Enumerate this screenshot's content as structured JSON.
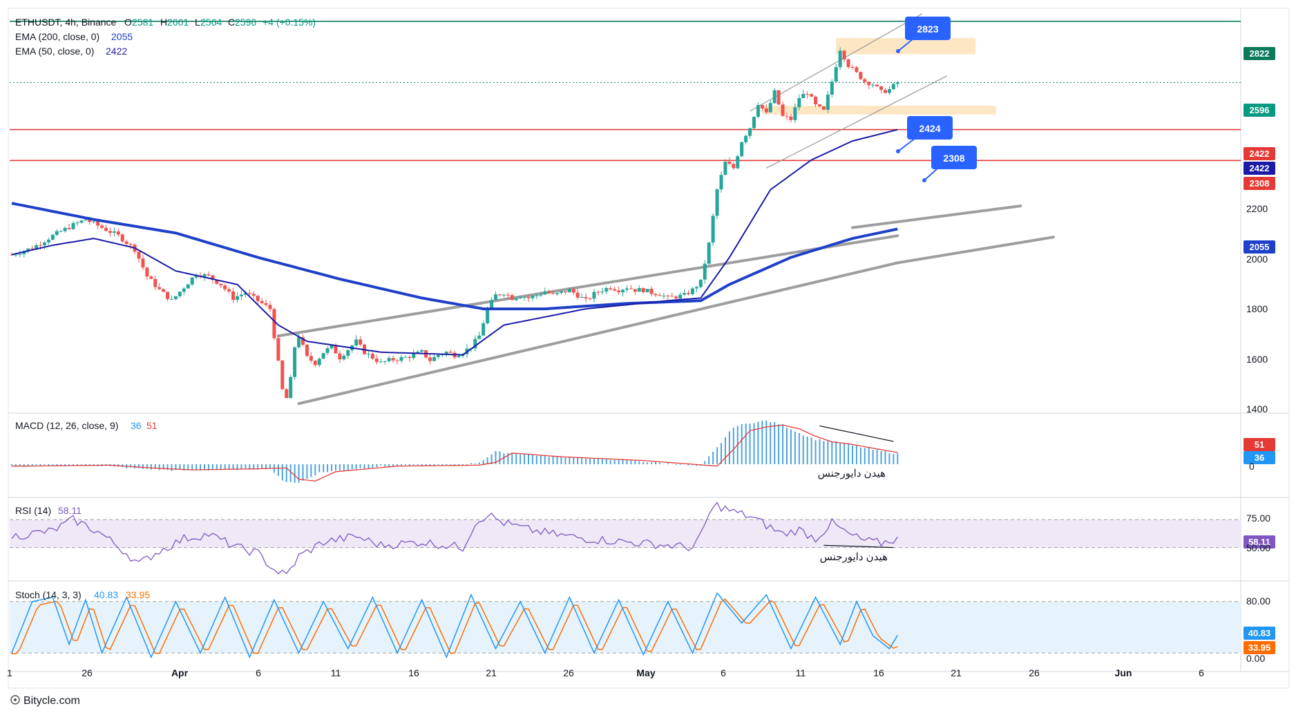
{
  "header": {
    "symbol": "ETHUSDT, 4h, Binance",
    "open_label": "O",
    "open": "2581",
    "high_label": "H",
    "high": "2601",
    "low_label": "L",
    "low": "2564",
    "close_label": "C",
    "close": "2596",
    "change": "+4 (+0.15%)",
    "ema200_label": "EMA (200, close, 0)",
    "ema200_value": "2055",
    "ema50_label": "EMA (50, close, 0)",
    "ema50_value": "2422"
  },
  "panes": {
    "macd": {
      "label": "MACD (12, 26, close, 9)",
      "v1": "36",
      "v2": "51",
      "tick": "0",
      "tag_signal": "51",
      "tag_macd": "36",
      "annotation": "هیدن دایورجنس"
    },
    "rsi": {
      "label": "RSI (14)",
      "value": "58.11",
      "ticks": [
        "75.00",
        "50.00"
      ],
      "tag": "58.11",
      "annotation": "هیدن دایورجنس"
    },
    "stoch": {
      "label": "Stoch (14, 3, 3)",
      "k": "40.83",
      "d": "33.95",
      "ticks": [
        "80.00",
        "0.00"
      ],
      "tag_k": "40.83",
      "tag_d": "33.95"
    }
  },
  "price_axis": {
    "ticks": [
      "2200",
      "2000",
      "1800",
      "1600",
      "1400"
    ],
    "tags": {
      "top": "2822",
      "last": "2596",
      "red1": "2422",
      "ema50": "2422",
      "red2": "2308",
      "ema200": "2055"
    }
  },
  "time_axis": [
    "1",
    "26",
    "Apr",
    "6",
    "11",
    "16",
    "21",
    "26",
    "May",
    "6",
    "11",
    "16",
    "21",
    "26",
    "Jun",
    "6"
  ],
  "callouts": [
    "2823",
    "2424",
    "2308"
  ],
  "footer": {
    "brand": "Bitycle.com"
  },
  "colors": {
    "up": "#26a69a",
    "down": "#ef5350",
    "ema200": "#1e40c8",
    "ema50": "#1a1aa6",
    "red_level": "#e53935",
    "teal_level": "#0b7a5b",
    "callout": "#2962ff",
    "zone": "#fde3bd",
    "channel": "#9e9e9e",
    "rsi": "#7e57c2",
    "stoch_k": "#2196f3",
    "stoch_d": "#ff6d00",
    "macd_hist": "#4aa3df",
    "macd_signal": "#e53935"
  },
  "chart_data": [
    {
      "type": "candlestick",
      "title": "ETHUSDT, 4h, Binance",
      "ylim": [
        1380,
        2870
      ],
      "last_bar": {
        "open": 2581,
        "high": 2601,
        "low": 2564,
        "close": 2596,
        "change": "+4 (+0.15%)"
      },
      "x_ticks": [
        "1",
        "26",
        "Apr",
        "6",
        "11",
        "16",
        "21",
        "26",
        "May",
        "6",
        "11",
        "16",
        "21",
        "26",
        "Jun",
        "6"
      ],
      "close_path": [
        [
          0,
          1960
        ],
        [
          5,
          1985
        ],
        [
          10,
          2030
        ],
        [
          15,
          2070
        ],
        [
          18,
          2090
        ],
        [
          22,
          2060
        ],
        [
          26,
          2030
        ],
        [
          30,
          1980
        ],
        [
          33,
          1880
        ],
        [
          36,
          1830
        ],
        [
          39,
          1790
        ],
        [
          42,
          1840
        ],
        [
          45,
          1890
        ],
        [
          48,
          1880
        ],
        [
          51,
          1850
        ],
        [
          54,
          1800
        ],
        [
          57,
          1820
        ],
        [
          60,
          1790
        ],
        [
          63,
          1760
        ],
        [
          65,
          1560
        ],
        [
          66,
          1460
        ],
        [
          67,
          1430
        ],
        [
          68,
          1500
        ],
        [
          69,
          1620
        ],
        [
          70,
          1660
        ],
        [
          72,
          1580
        ],
        [
          74,
          1560
        ],
        [
          76,
          1600
        ],
        [
          78,
          1620
        ],
        [
          80,
          1580
        ],
        [
          82,
          1610
        ],
        [
          84,
          1640
        ],
        [
          86,
          1600
        ],
        [
          88,
          1580
        ],
        [
          90,
          1560
        ],
        [
          92,
          1570
        ],
        [
          94,
          1575
        ],
        [
          96,
          1580
        ],
        [
          98,
          1590
        ],
        [
          100,
          1600
        ],
        [
          102,
          1570
        ],
        [
          104,
          1590
        ],
        [
          106,
          1600
        ],
        [
          108,
          1590
        ],
        [
          110,
          1600
        ],
        [
          112,
          1620
        ],
        [
          114,
          1660
        ],
        [
          116,
          1760
        ],
        [
          118,
          1810
        ],
        [
          120,
          1820
        ],
        [
          122,
          1800
        ],
        [
          124,
          1810
        ],
        [
          126,
          1800
        ],
        [
          128,
          1810
        ],
        [
          130,
          1825
        ],
        [
          132,
          1810
        ],
        [
          134,
          1820
        ],
        [
          136,
          1830
        ],
        [
          138,
          1810
        ],
        [
          140,
          1790
        ],
        [
          142,
          1815
        ],
        [
          144,
          1830
        ],
        [
          146,
          1840
        ],
        [
          148,
          1830
        ],
        [
          150,
          1840
        ],
        [
          152,
          1830
        ],
        [
          154,
          1830
        ],
        [
          156,
          1820
        ],
        [
          158,
          1815
        ],
        [
          160,
          1800
        ],
        [
          162,
          1805
        ],
        [
          164,
          1810
        ],
        [
          166,
          1830
        ],
        [
          168,
          1860
        ],
        [
          170,
          2000
        ],
        [
          172,
          2200
        ],
        [
          174,
          2300
        ],
        [
          176,
          2280
        ],
        [
          178,
          2380
        ],
        [
          180,
          2430
        ],
        [
          182,
          2520
        ],
        [
          184,
          2480
        ],
        [
          186,
          2560
        ],
        [
          188,
          2470
        ],
        [
          190,
          2460
        ],
        [
          192,
          2540
        ],
        [
          194,
          2560
        ],
        [
          196,
          2510
        ],
        [
          198,
          2490
        ],
        [
          200,
          2600
        ],
        [
          202,
          2720
        ],
        [
          204,
          2660
        ],
        [
          206,
          2630
        ],
        [
          208,
          2600
        ],
        [
          210,
          2590
        ],
        [
          212,
          2560
        ],
        [
          214,
          2570
        ],
        [
          216,
          2596
        ]
      ],
      "levels": [
        {
          "value": 2822,
          "color": "teal"
        },
        {
          "value": 2596,
          "color": "teal",
          "style": "dotted"
        },
        {
          "value": 2422,
          "color": "red"
        },
        {
          "value": 2308,
          "color": "red"
        }
      ],
      "ema200": [
        [
          0,
          2150
        ],
        [
          20,
          2090
        ],
        [
          40,
          2040
        ],
        [
          60,
          1950
        ],
        [
          80,
          1870
        ],
        [
          100,
          1800
        ],
        [
          115,
          1760
        ],
        [
          130,
          1760
        ],
        [
          150,
          1780
        ],
        [
          168,
          1790
        ],
        [
          175,
          1850
        ],
        [
          190,
          1950
        ],
        [
          205,
          2020
        ],
        [
          216,
          2055
        ]
      ],
      "ema50": [
        [
          0,
          1960
        ],
        [
          10,
          1995
        ],
        [
          20,
          2020
        ],
        [
          30,
          1985
        ],
        [
          40,
          1900
        ],
        [
          55,
          1850
        ],
        [
          65,
          1700
        ],
        [
          72,
          1640
        ],
        [
          90,
          1600
        ],
        [
          110,
          1590
        ],
        [
          120,
          1700
        ],
        [
          140,
          1760
        ],
        [
          160,
          1790
        ],
        [
          168,
          1800
        ],
        [
          175,
          1950
        ],
        [
          185,
          2200
        ],
        [
          195,
          2310
        ],
        [
          205,
          2380
        ],
        [
          216,
          2422
        ]
      ],
      "channels": [
        [
          [
            65,
            1660
          ],
          [
            216,
            2030
          ]
        ],
        [
          [
            70,
            1410
          ],
          [
            216,
            1930
          ]
        ],
        [
          [
            205,
            2060
          ],
          [
            246,
            2140
          ]
        ],
        [
          [
            0,
            0
          ],
          [
            0,
            0
          ]
        ]
      ],
      "callouts": [
        2823,
        2424,
        2308
      ]
    },
    {
      "type": "macd",
      "title": "MACD (12, 26, close, 9)",
      "macd": 36,
      "signal": 51,
      "hist_path": [
        [
          0,
          -10
        ],
        [
          20,
          -5
        ],
        [
          30,
          -20
        ],
        [
          40,
          -30
        ],
        [
          55,
          -25
        ],
        [
          63,
          -20
        ],
        [
          66,
          -80
        ],
        [
          70,
          -90
        ],
        [
          75,
          -40
        ],
        [
          90,
          -10
        ],
        [
          110,
          -5
        ],
        [
          114,
          10
        ],
        [
          118,
          60
        ],
        [
          130,
          40
        ],
        [
          150,
          20
        ],
        [
          168,
          -10
        ],
        [
          172,
          80
        ],
        [
          176,
          180
        ],
        [
          180,
          200
        ],
        [
          184,
          210
        ],
        [
          188,
          190
        ],
        [
          192,
          150
        ],
        [
          196,
          120
        ],
        [
          200,
          110
        ],
        [
          205,
          90
        ],
        [
          210,
          70
        ],
        [
          216,
          50
        ]
      ]
    },
    {
      "type": "line",
      "title": "RSI (14)",
      "value": 58.11,
      "ylim": [
        20,
        95
      ],
      "bands": [
        75,
        50
      ],
      "path": [
        [
          0,
          60
        ],
        [
          10,
          65
        ],
        [
          15,
          75
        ],
        [
          18,
          70
        ],
        [
          22,
          62
        ],
        [
          28,
          45
        ],
        [
          31,
          35
        ],
        [
          35,
          45
        ],
        [
          42,
          58
        ],
        [
          48,
          62
        ],
        [
          55,
          50
        ],
        [
          60,
          45
        ],
        [
          64,
          30
        ],
        [
          67,
          25
        ],
        [
          70,
          42
        ],
        [
          76,
          55
        ],
        [
          84,
          60
        ],
        [
          90,
          52
        ],
        [
          100,
          55
        ],
        [
          110,
          50
        ],
        [
          113,
          72
        ],
        [
          116,
          80
        ],
        [
          120,
          72
        ],
        [
          126,
          66
        ],
        [
          132,
          62
        ],
        [
          140,
          58
        ],
        [
          150,
          55
        ],
        [
          160,
          52
        ],
        [
          166,
          50
        ],
        [
          168,
          60
        ],
        [
          170,
          80
        ],
        [
          172,
          88
        ],
        [
          176,
          82
        ],
        [
          180,
          78
        ],
        [
          184,
          70
        ],
        [
          188,
          62
        ],
        [
          192,
          66
        ],
        [
          196,
          58
        ],
        [
          200,
          72
        ],
        [
          204,
          62
        ],
        [
          208,
          56
        ],
        [
          212,
          54
        ],
        [
          216,
          58.11
        ]
      ]
    },
    {
      "type": "line",
      "title": "Stoch (14, 3, 3)",
      "k": 40.83,
      "d": 33.95,
      "ylim": [
        0,
        100
      ],
      "bands": [
        80,
        20
      ],
      "k_path": [
        [
          0,
          20
        ],
        [
          5,
          80
        ],
        [
          10,
          85
        ],
        [
          14,
          30
        ],
        [
          18,
          82
        ],
        [
          22,
          20
        ],
        [
          28,
          85
        ],
        [
          34,
          15
        ],
        [
          40,
          80
        ],
        [
          46,
          20
        ],
        [
          52,
          85
        ],
        [
          58,
          15
        ],
        [
          64,
          82
        ],
        [
          70,
          20
        ],
        [
          76,
          80
        ],
        [
          82,
          25
        ],
        [
          88,
          85
        ],
        [
          94,
          20
        ],
        [
          100,
          82
        ],
        [
          106,
          15
        ],
        [
          112,
          88
        ],
        [
          118,
          25
        ],
        [
          124,
          80
        ],
        [
          130,
          20
        ],
        [
          136,
          85
        ],
        [
          142,
          20
        ],
        [
          148,
          82
        ],
        [
          154,
          18
        ],
        [
          160,
          80
        ],
        [
          166,
          20
        ],
        [
          172,
          90
        ],
        [
          178,
          55
        ],
        [
          184,
          88
        ],
        [
          190,
          25
        ],
        [
          196,
          85
        ],
        [
          202,
          30
        ],
        [
          206,
          80
        ],
        [
          210,
          40
        ],
        [
          214,
          25
        ],
        [
          216,
          40.83
        ]
      ]
    }
  ]
}
